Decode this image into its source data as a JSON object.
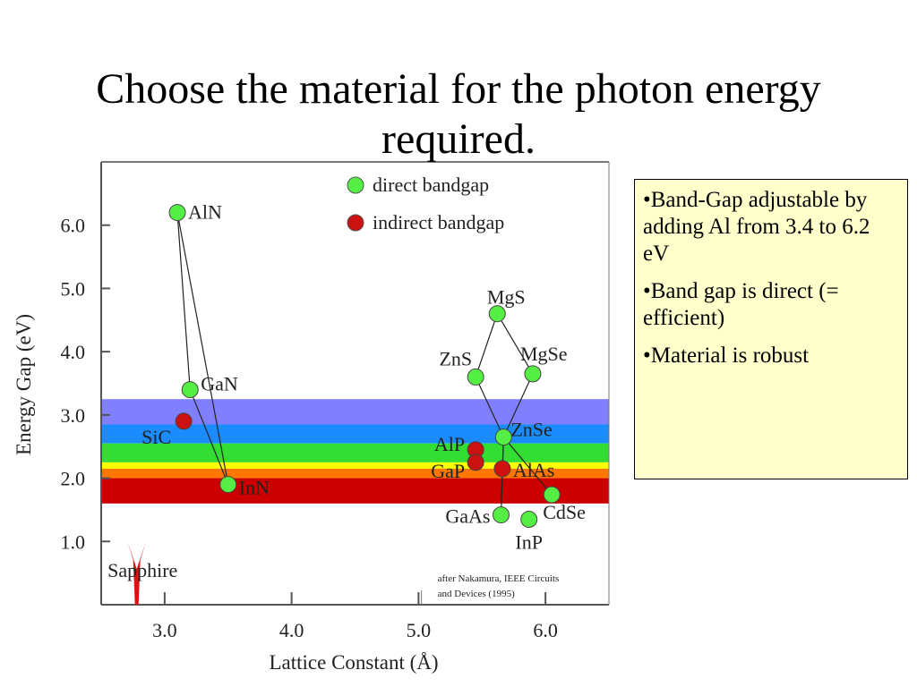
{
  "slide": {
    "title": "Choose the material for the photon energy required."
  },
  "info_box": {
    "bullets": [
      "•Band-Gap adjustable by adding Al from 3.4 to 6.2 eV",
      "•Band gap is direct (= efficient)",
      "•Material is robust"
    ]
  },
  "chart_data": {
    "type": "scatter",
    "xlabel": "Lattice Constant (Å)",
    "ylabel": "Energy Gap (eV)",
    "xlim": [
      2.5,
      6.5
    ],
    "ylim": [
      0.0,
      7.0
    ],
    "x_ticks": [
      {
        "value": 3.0,
        "label": "3.0"
      },
      {
        "value": 4.0,
        "label": "4.0"
      },
      {
        "value": 5.0,
        "label": "5.0"
      },
      {
        "value": 6.0,
        "label": "6.0"
      }
    ],
    "y_ticks": [
      {
        "value": 1.0,
        "label": "1.0"
      },
      {
        "value": 2.0,
        "label": "2.0"
      },
      {
        "value": 3.0,
        "label": "3.0"
      },
      {
        "value": 4.0,
        "label": "4.0"
      },
      {
        "value": 5.0,
        "label": "5.0"
      },
      {
        "value": 6.0,
        "label": "6.0"
      }
    ],
    "legend": {
      "position": "top",
      "entries": [
        {
          "label": "direct bandgap",
          "color": "#55ee44"
        },
        {
          "label": "indirect bandgap",
          "color": "#cc1111"
        }
      ]
    },
    "visible_spectrum_bands": [
      {
        "from": 2.85,
        "to": 3.25,
        "color": "#8080ff"
      },
      {
        "from": 2.55,
        "to": 2.85,
        "color": "#1a8cff"
      },
      {
        "from": 2.25,
        "to": 2.55,
        "color": "#33dd33"
      },
      {
        "from": 2.15,
        "to": 2.25,
        "color": "#ffff00"
      },
      {
        "from": 2.0,
        "to": 2.15,
        "color": "#ff7700"
      },
      {
        "from": 1.6,
        "to": 2.0,
        "color": "#cc0000"
      }
    ],
    "points": [
      {
        "material": "AlN",
        "x": 3.1,
        "y": 6.2,
        "type": "direct"
      },
      {
        "material": "GaN",
        "x": 3.2,
        "y": 3.4,
        "type": "direct"
      },
      {
        "material": "InN",
        "x": 3.5,
        "y": 1.9,
        "type": "direct"
      },
      {
        "material": "SiC",
        "x": 3.15,
        "y": 2.9,
        "type": "indirect"
      },
      {
        "material": "MgS",
        "x": 5.62,
        "y": 4.6,
        "type": "direct"
      },
      {
        "material": "ZnS",
        "x": 5.45,
        "y": 3.6,
        "type": "direct"
      },
      {
        "material": "MgSe",
        "x": 5.9,
        "y": 3.65,
        "type": "direct"
      },
      {
        "material": "ZnSe",
        "x": 5.67,
        "y": 2.65,
        "type": "direct"
      },
      {
        "material": "AlP",
        "x": 5.45,
        "y": 2.45,
        "type": "indirect"
      },
      {
        "material": "GaP",
        "x": 5.45,
        "y": 2.25,
        "type": "indirect"
      },
      {
        "material": "AlAs",
        "x": 5.66,
        "y": 2.15,
        "type": "indirect"
      },
      {
        "material": "GaAs",
        "x": 5.65,
        "y": 1.42,
        "type": "direct"
      },
      {
        "material": "InP",
        "x": 5.87,
        "y": 1.35,
        "type": "direct"
      },
      {
        "material": "CdSe",
        "x": 6.05,
        "y": 1.74,
        "type": "direct"
      }
    ],
    "connections": [
      [
        "AlN",
        "GaN"
      ],
      [
        "GaN",
        "InN"
      ],
      [
        "AlN",
        "InN"
      ],
      [
        "MgS",
        "ZnS"
      ],
      [
        "MgS",
        "MgSe"
      ],
      [
        "ZnS",
        "ZnSe"
      ],
      [
        "MgSe",
        "ZnSe"
      ],
      [
        "ZnSe",
        "AlAs"
      ],
      [
        "ZnSe",
        "GaAs"
      ],
      [
        "ZnSe",
        "CdSe"
      ]
    ],
    "annotations": [
      {
        "text": "Sapphire",
        "x": 2.55,
        "y": 0.55
      },
      {
        "text": "after Nakamura, IEEE Circuits and Devices (1995)",
        "x": 5.15,
        "y": 0.2
      }
    ]
  }
}
